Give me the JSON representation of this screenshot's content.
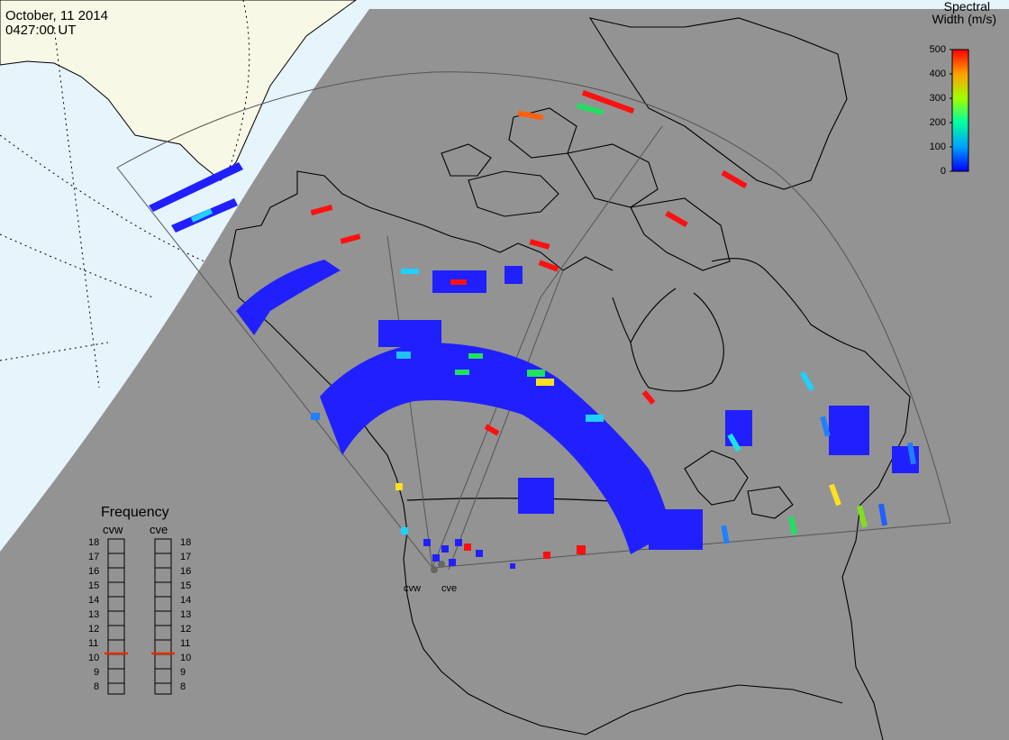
{
  "header": {
    "date": "October, 11 2014",
    "time": "0427:00 UT"
  },
  "colorbar": {
    "title_line1": "Spectral",
    "title_line2": "Width (m/s)",
    "ticks": [
      "500",
      "400",
      "300",
      "200",
      "100",
      "0"
    ],
    "min": 0,
    "max": 500
  },
  "frequency_panel": {
    "title": "Frequency",
    "radars": [
      "cvw",
      "cve"
    ],
    "ticks": [
      "18",
      "17",
      "16",
      "15",
      "14",
      "13",
      "12",
      "11",
      "10",
      "9",
      "8"
    ],
    "current_mhz": {
      "cvw": 10.5,
      "cve": 10.5
    }
  },
  "radar_labels": [
    "cvw",
    "cve"
  ],
  "colors": {
    "night": "#939393",
    "day_ocean": "#e6f4fc",
    "day_land": "#f8f8e6",
    "low": "#2020ff",
    "high": "#ff0000"
  }
}
